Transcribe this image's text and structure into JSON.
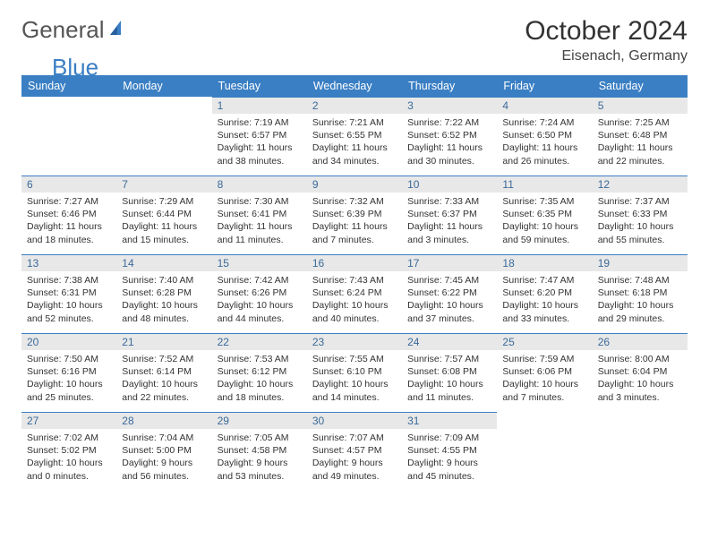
{
  "logo": {
    "part1": "General",
    "part2": "Blue"
  },
  "title": "October 2024",
  "location": "Eisenach, Germany",
  "colors": {
    "header_bg": "#3a7fc4",
    "daynum_bg": "#e8e8e8",
    "daynum_border": "#3a7fc4",
    "daynum_text": "#3a6a9a",
    "body_text": "#333333",
    "page_bg": "#ffffff",
    "logo_gray": "#555555",
    "logo_blue": "#3a7fc4"
  },
  "typography": {
    "month_fontsize": 30,
    "location_fontsize": 16,
    "weekday_fontsize": 12.5,
    "daynum_fontsize": 12,
    "body_fontsize": 10.5
  },
  "weekdays": [
    "Sunday",
    "Monday",
    "Tuesday",
    "Wednesday",
    "Thursday",
    "Friday",
    "Saturday"
  ],
  "weeks": [
    [
      null,
      null,
      {
        "n": "1",
        "sr": "Sunrise: 7:19 AM",
        "ss": "Sunset: 6:57 PM",
        "dl": "Daylight: 11 hours and 38 minutes."
      },
      {
        "n": "2",
        "sr": "Sunrise: 7:21 AM",
        "ss": "Sunset: 6:55 PM",
        "dl": "Daylight: 11 hours and 34 minutes."
      },
      {
        "n": "3",
        "sr": "Sunrise: 7:22 AM",
        "ss": "Sunset: 6:52 PM",
        "dl": "Daylight: 11 hours and 30 minutes."
      },
      {
        "n": "4",
        "sr": "Sunrise: 7:24 AM",
        "ss": "Sunset: 6:50 PM",
        "dl": "Daylight: 11 hours and 26 minutes."
      },
      {
        "n": "5",
        "sr": "Sunrise: 7:25 AM",
        "ss": "Sunset: 6:48 PM",
        "dl": "Daylight: 11 hours and 22 minutes."
      }
    ],
    [
      {
        "n": "6",
        "sr": "Sunrise: 7:27 AM",
        "ss": "Sunset: 6:46 PM",
        "dl": "Daylight: 11 hours and 18 minutes."
      },
      {
        "n": "7",
        "sr": "Sunrise: 7:29 AM",
        "ss": "Sunset: 6:44 PM",
        "dl": "Daylight: 11 hours and 15 minutes."
      },
      {
        "n": "8",
        "sr": "Sunrise: 7:30 AM",
        "ss": "Sunset: 6:41 PM",
        "dl": "Daylight: 11 hours and 11 minutes."
      },
      {
        "n": "9",
        "sr": "Sunrise: 7:32 AM",
        "ss": "Sunset: 6:39 PM",
        "dl": "Daylight: 11 hours and 7 minutes."
      },
      {
        "n": "10",
        "sr": "Sunrise: 7:33 AM",
        "ss": "Sunset: 6:37 PM",
        "dl": "Daylight: 11 hours and 3 minutes."
      },
      {
        "n": "11",
        "sr": "Sunrise: 7:35 AM",
        "ss": "Sunset: 6:35 PM",
        "dl": "Daylight: 10 hours and 59 minutes."
      },
      {
        "n": "12",
        "sr": "Sunrise: 7:37 AM",
        "ss": "Sunset: 6:33 PM",
        "dl": "Daylight: 10 hours and 55 minutes."
      }
    ],
    [
      {
        "n": "13",
        "sr": "Sunrise: 7:38 AM",
        "ss": "Sunset: 6:31 PM",
        "dl": "Daylight: 10 hours and 52 minutes."
      },
      {
        "n": "14",
        "sr": "Sunrise: 7:40 AM",
        "ss": "Sunset: 6:28 PM",
        "dl": "Daylight: 10 hours and 48 minutes."
      },
      {
        "n": "15",
        "sr": "Sunrise: 7:42 AM",
        "ss": "Sunset: 6:26 PM",
        "dl": "Daylight: 10 hours and 44 minutes."
      },
      {
        "n": "16",
        "sr": "Sunrise: 7:43 AM",
        "ss": "Sunset: 6:24 PM",
        "dl": "Daylight: 10 hours and 40 minutes."
      },
      {
        "n": "17",
        "sr": "Sunrise: 7:45 AM",
        "ss": "Sunset: 6:22 PM",
        "dl": "Daylight: 10 hours and 37 minutes."
      },
      {
        "n": "18",
        "sr": "Sunrise: 7:47 AM",
        "ss": "Sunset: 6:20 PM",
        "dl": "Daylight: 10 hours and 33 minutes."
      },
      {
        "n": "19",
        "sr": "Sunrise: 7:48 AM",
        "ss": "Sunset: 6:18 PM",
        "dl": "Daylight: 10 hours and 29 minutes."
      }
    ],
    [
      {
        "n": "20",
        "sr": "Sunrise: 7:50 AM",
        "ss": "Sunset: 6:16 PM",
        "dl": "Daylight: 10 hours and 25 minutes."
      },
      {
        "n": "21",
        "sr": "Sunrise: 7:52 AM",
        "ss": "Sunset: 6:14 PM",
        "dl": "Daylight: 10 hours and 22 minutes."
      },
      {
        "n": "22",
        "sr": "Sunrise: 7:53 AM",
        "ss": "Sunset: 6:12 PM",
        "dl": "Daylight: 10 hours and 18 minutes."
      },
      {
        "n": "23",
        "sr": "Sunrise: 7:55 AM",
        "ss": "Sunset: 6:10 PM",
        "dl": "Daylight: 10 hours and 14 minutes."
      },
      {
        "n": "24",
        "sr": "Sunrise: 7:57 AM",
        "ss": "Sunset: 6:08 PM",
        "dl": "Daylight: 10 hours and 11 minutes."
      },
      {
        "n": "25",
        "sr": "Sunrise: 7:59 AM",
        "ss": "Sunset: 6:06 PM",
        "dl": "Daylight: 10 hours and 7 minutes."
      },
      {
        "n": "26",
        "sr": "Sunrise: 8:00 AM",
        "ss": "Sunset: 6:04 PM",
        "dl": "Daylight: 10 hours and 3 minutes."
      }
    ],
    [
      {
        "n": "27",
        "sr": "Sunrise: 7:02 AM",
        "ss": "Sunset: 5:02 PM",
        "dl": "Daylight: 10 hours and 0 minutes."
      },
      {
        "n": "28",
        "sr": "Sunrise: 7:04 AM",
        "ss": "Sunset: 5:00 PM",
        "dl": "Daylight: 9 hours and 56 minutes."
      },
      {
        "n": "29",
        "sr": "Sunrise: 7:05 AM",
        "ss": "Sunset: 4:58 PM",
        "dl": "Daylight: 9 hours and 53 minutes."
      },
      {
        "n": "30",
        "sr": "Sunrise: 7:07 AM",
        "ss": "Sunset: 4:57 PM",
        "dl": "Daylight: 9 hours and 49 minutes."
      },
      {
        "n": "31",
        "sr": "Sunrise: 7:09 AM",
        "ss": "Sunset: 4:55 PM",
        "dl": "Daylight: 9 hours and 45 minutes."
      },
      null,
      null
    ]
  ]
}
